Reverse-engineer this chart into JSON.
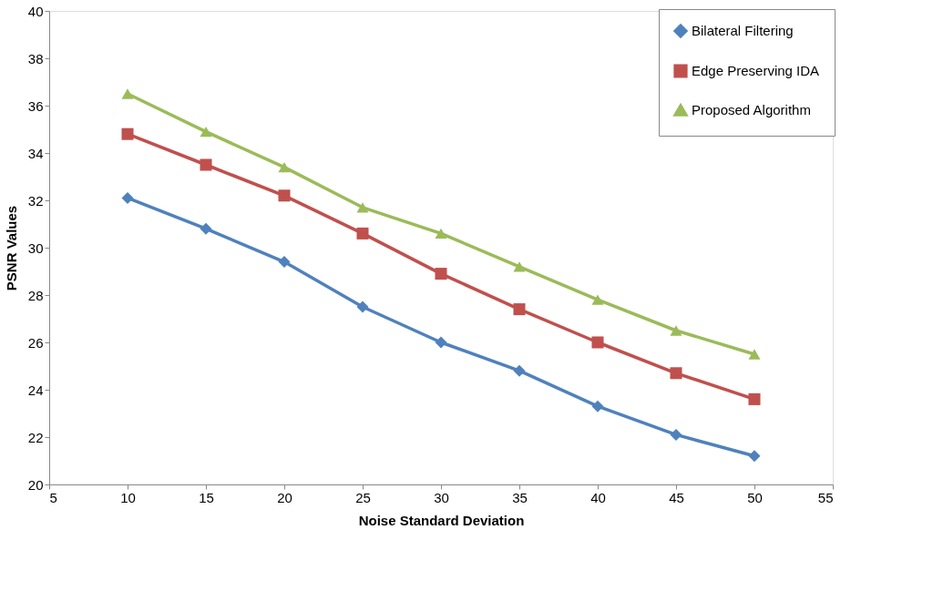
{
  "chart_data": {
    "type": "line",
    "xlabel": "Noise Standard Deviation",
    "ylabel": "PSNR Values",
    "x": [
      10,
      15,
      20,
      25,
      30,
      35,
      40,
      45,
      50
    ],
    "series": [
      {
        "name": "Bilateral Filtering",
        "color": "#4f81bd",
        "marker": "diamond",
        "values": [
          32.1,
          30.8,
          29.4,
          27.5,
          26.0,
          24.8,
          23.3,
          22.1,
          21.2
        ]
      },
      {
        "name": "Edge Preserving IDA",
        "color": "#c0504d",
        "marker": "square",
        "values": [
          34.8,
          33.5,
          32.2,
          30.6,
          28.9,
          27.4,
          26.0,
          24.7,
          23.6
        ]
      },
      {
        "name": "Proposed Algorithm",
        "color": "#9bbb59",
        "marker": "triangle",
        "values": [
          36.5,
          34.9,
          33.4,
          31.7,
          30.6,
          29.2,
          27.8,
          26.5,
          25.5
        ]
      }
    ],
    "xlim": [
      5,
      55
    ],
    "xticks": [
      5,
      10,
      15,
      20,
      25,
      30,
      35,
      40,
      45,
      50,
      55
    ],
    "ylim": [
      20,
      40
    ],
    "yticks": [
      20,
      22,
      24,
      26,
      28,
      30,
      32,
      34,
      36,
      38,
      40
    ],
    "grid": false,
    "legend": "top right",
    "line_style": "solid"
  }
}
